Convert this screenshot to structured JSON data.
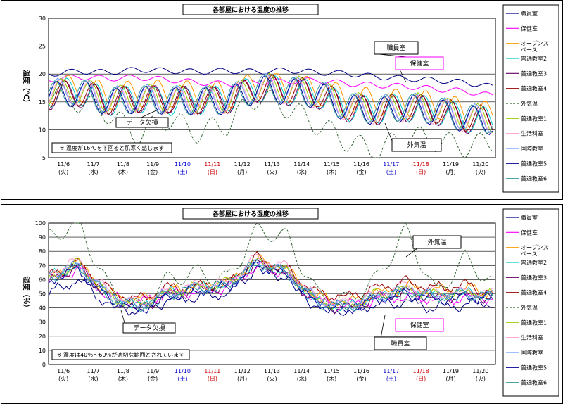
{
  "chart_data": [
    {
      "type": "line",
      "title": "各部屋における温度の推移",
      "ylabel": "温度（℃）",
      "ylim": [
        5,
        30
      ],
      "yticks": [
        5,
        10,
        15,
        20,
        25,
        30
      ],
      "grid": true,
      "legend": "right",
      "x_ticks": [
        {
          "date": "11/6",
          "dow": "(火)",
          "color": "#000000"
        },
        {
          "date": "11/7",
          "dow": "(水)",
          "color": "#000000"
        },
        {
          "date": "11/8",
          "dow": "(木)",
          "color": "#000000"
        },
        {
          "date": "11/9",
          "dow": "(金)",
          "color": "#000000"
        },
        {
          "date": "11/10",
          "dow": "(土)",
          "color": "#0000cc"
        },
        {
          "date": "11/11",
          "dow": "(日)",
          "color": "#cc0000"
        },
        {
          "date": "11/12",
          "dow": "(月)",
          "color": "#000000"
        },
        {
          "date": "11/13",
          "dow": "(火)",
          "color": "#000000"
        },
        {
          "date": "11/14",
          "dow": "(水)",
          "color": "#000000"
        },
        {
          "date": "11/15",
          "dow": "(木)",
          "color": "#000000"
        },
        {
          "date": "11/16",
          "dow": "(金)",
          "color": "#000000"
        },
        {
          "date": "11/17",
          "dow": "(土)",
          "color": "#0000cc"
        },
        {
          "date": "11/18",
          "dow": "(日)",
          "color": "#cc0000"
        },
        {
          "date": "11/19",
          "dow": "(月)",
          "color": "#000000"
        },
        {
          "date": "11/20",
          "dow": "(火)",
          "color": "#000000"
        }
      ],
      "series": [
        {
          "name": "職員室",
          "color": "#000080",
          "dash": "",
          "base": [
            20,
            20.5,
            20.3,
            20.8,
            20.6,
            20.4,
            20.6,
            20.4,
            20.7,
            20.3,
            20.1,
            19.5,
            19.2,
            18.9,
            18.5,
            17.6
          ]
        },
        {
          "name": "保健室",
          "color": "#ff00ff",
          "dash": "",
          "base": [
            19,
            19.5,
            19.2,
            19.4,
            19,
            18.5,
            18.2,
            18.6,
            18.7,
            18.9,
            18.3,
            18,
            17.8,
            17.3,
            16.9,
            16
          ]
        },
        {
          "name": "オープンスペース",
          "color": "#ff9900",
          "dash": "",
          "base": [
            17,
            17.5,
            16,
            16.5,
            16.5,
            16.3,
            16.2,
            18,
            17.5,
            17,
            15.5,
            15,
            14.8,
            14.5,
            13,
            12.5
          ]
        },
        {
          "name": "普通教室2",
          "color": "#00cccc",
          "dash": "",
          "base": [
            16.5,
            17,
            15,
            15.5,
            15,
            15.2,
            15.5,
            17.5,
            17,
            16.5,
            14,
            13.5,
            14,
            13.5,
            12,
            11.5
          ]
        },
        {
          "name": "普通教室3",
          "color": "#660066",
          "dash": "",
          "base": [
            16,
            16.5,
            15,
            15.5,
            15.5,
            15.3,
            15.3,
            17.2,
            16.8,
            16.3,
            13.8,
            13.3,
            13.8,
            13.3,
            11.8,
            11.3
          ]
        },
        {
          "name": "普通教室4",
          "color": "#990000",
          "dash": "",
          "base": [
            16.2,
            16.8,
            15.2,
            15.6,
            15.4,
            15.3,
            15.4,
            17.6,
            17.2,
            16.6,
            14.2,
            13.6,
            14.2,
            13.6,
            12.2,
            11.8
          ]
        },
        {
          "name": "外気温",
          "color": "#336633",
          "dash": "3,2",
          "base": [
            17,
            15,
            13,
            9,
            12,
            9.5,
            11,
            16,
            14,
            11,
            8,
            6,
            9,
            8,
            7,
            8
          ]
        },
        {
          "name": "普通教室1",
          "color": "#99cc00",
          "dash": "",
          "base": [
            16.4,
            17.2,
            15.4,
            15.8,
            15.6,
            15.4,
            15.6,
            17.8,
            17.4,
            16.8,
            14.4,
            13.8,
            14.4,
            13.8,
            12.4,
            11.9
          ]
        },
        {
          "name": "生活科室",
          "color": "#ff99cc",
          "dash": "",
          "base": [
            16.3,
            16.9,
            15.1,
            15.5,
            15.3,
            15.2,
            15.3,
            17.4,
            17,
            16.4,
            14,
            13.4,
            14,
            13.4,
            12,
            11.6
          ]
        },
        {
          "name": "国際教室",
          "color": "#6699ff",
          "dash": "",
          "base": [
            16.6,
            17.1,
            15.3,
            15.7,
            15.5,
            15.4,
            15.5,
            17.7,
            17.3,
            16.7,
            14.3,
            13.7,
            14.3,
            13.7,
            12.3,
            11.9
          ]
        },
        {
          "name": "普通教室5",
          "color": "#000099",
          "dash": "",
          "base": [
            16.1,
            16.7,
            14.9,
            15.4,
            15.2,
            15.1,
            15.2,
            17.3,
            16.9,
            16.3,
            13.9,
            13.3,
            13.9,
            13.3,
            11.9,
            11.5
          ]
        },
        {
          "name": "普通教室6",
          "color": "#339999",
          "dash": "",
          "base": [
            16.2,
            16.8,
            15,
            15.5,
            15.3,
            15.2,
            15.3,
            17.5,
            17.1,
            16.5,
            14.1,
            13.5,
            14.1,
            13.5,
            12.1,
            11.7
          ]
        }
      ],
      "annotations": [
        {
          "text": "職員室"
        },
        {
          "text": "保健室"
        },
        {
          "text": "データ欠損"
        },
        {
          "text": "外気温"
        },
        {
          "text": "※ 温度が16℃を下回ると肌寒く感じます"
        }
      ]
    },
    {
      "type": "line",
      "title": "各部屋における湿度の推移",
      "ylabel": "湿度（％）",
      "ylim": [
        0,
        100
      ],
      "yticks": [
        0,
        10,
        20,
        30,
        40,
        50,
        60,
        70,
        80,
        90,
        100
      ],
      "grid": true,
      "legend": "right",
      "x_ticks": [
        {
          "date": "11/6",
          "dow": "(火)",
          "color": "#000000"
        },
        {
          "date": "11/7",
          "dow": "(水)",
          "color": "#000000"
        },
        {
          "date": "11/8",
          "dow": "(木)",
          "color": "#000000"
        },
        {
          "date": "11/9",
          "dow": "(金)",
          "color": "#000000"
        },
        {
          "date": "11/10",
          "dow": "(土)",
          "color": "#0000cc"
        },
        {
          "date": "11/11",
          "dow": "(日)",
          "color": "#cc0000"
        },
        {
          "date": "11/12",
          "dow": "(月)",
          "color": "#000000"
        },
        {
          "date": "11/13",
          "dow": "(火)",
          "color": "#000000"
        },
        {
          "date": "11/14",
          "dow": "(水)",
          "color": "#000000"
        },
        {
          "date": "11/15",
          "dow": "(木)",
          "color": "#000000"
        },
        {
          "date": "11/16",
          "dow": "(金)",
          "color": "#000000"
        },
        {
          "date": "11/17",
          "dow": "(土)",
          "color": "#0000cc"
        },
        {
          "date": "11/18",
          "dow": "(日)",
          "color": "#cc0000"
        },
        {
          "date": "11/19",
          "dow": "(月)",
          "color": "#000000"
        },
        {
          "date": "11/20",
          "dow": "(火)",
          "color": "#000000"
        }
      ],
      "series": [
        {
          "name": "職員室",
          "color": "#000080",
          "dash": "",
          "base": [
            50,
            60,
            42,
            38,
            45,
            48,
            50,
            68,
            62,
            40,
            38,
            42,
            44,
            40,
            42,
            44
          ]
        },
        {
          "name": "保健室",
          "color": "#ff00ff",
          "dash": "",
          "base": [
            58,
            68,
            48,
            44,
            50,
            52,
            54,
            70,
            64,
            45,
            42,
            46,
            48,
            46,
            47,
            48
          ]
        },
        {
          "name": "オープンスペース",
          "color": "#ff9900",
          "dash": "",
          "base": [
            60,
            72,
            50,
            45,
            52,
            55,
            57,
            74,
            66,
            48,
            44,
            50,
            55,
            52,
            54,
            50
          ]
        },
        {
          "name": "普通教室2",
          "color": "#00cccc",
          "dash": "",
          "base": [
            62,
            70,
            48,
            40,
            50,
            54,
            56,
            72,
            65,
            44,
            40,
            48,
            52,
            48,
            50,
            48
          ]
        },
        {
          "name": "普通教室3",
          "color": "#660066",
          "dash": "",
          "base": [
            60,
            69,
            47,
            39,
            49,
            53,
            55,
            71,
            64,
            43,
            39,
            47,
            51,
            47,
            49,
            47
          ]
        },
        {
          "name": "普通教室4",
          "color": "#990000",
          "dash": "",
          "base": [
            63,
            72,
            52,
            46,
            54,
            56,
            58,
            75,
            67,
            50,
            48,
            54,
            58,
            54,
            56,
            50
          ]
        },
        {
          "name": "外気温",
          "color": "#336633",
          "dash": "3,2",
          "base": [
            90,
            100,
            55,
            40,
            60,
            65,
            60,
            95,
            90,
            50,
            45,
            60,
            95,
            50,
            75,
            55
          ]
        },
        {
          "name": "普通教室1",
          "color": "#99cc00",
          "dash": "",
          "base": [
            61,
            71,
            49,
            41,
            51,
            55,
            57,
            73,
            66,
            45,
            41,
            49,
            53,
            49,
            51,
            49
          ]
        },
        {
          "name": "生活科室",
          "color": "#ff99cc",
          "dash": "",
          "base": [
            64,
            74,
            51,
            43,
            52,
            56,
            58,
            76,
            68,
            47,
            43,
            50,
            56,
            50,
            52,
            50
          ]
        },
        {
          "name": "国際教室",
          "color": "#6699ff",
          "dash": "",
          "base": [
            62,
            71,
            49,
            41,
            50,
            54,
            56,
            72,
            65,
            45,
            41,
            48,
            52,
            48,
            50,
            48
          ]
        },
        {
          "name": "普通教室5",
          "color": "#000099",
          "dash": "",
          "base": [
            59,
            68,
            46,
            38,
            48,
            52,
            54,
            70,
            63,
            42,
            38,
            46,
            50,
            46,
            48,
            46
          ]
        },
        {
          "name": "普通教室6",
          "color": "#339999",
          "dash": "",
          "base": [
            61,
            70,
            48,
            40,
            50,
            54,
            56,
            72,
            65,
            44,
            40,
            48,
            52,
            48,
            50,
            48
          ]
        }
      ],
      "annotations": [
        {
          "text": "外気温"
        },
        {
          "text": "保健室"
        },
        {
          "text": "職員室"
        },
        {
          "text": "データ欠損"
        },
        {
          "text": "※ 湿度は40％～60％が適切な範囲とされています"
        }
      ]
    }
  ]
}
